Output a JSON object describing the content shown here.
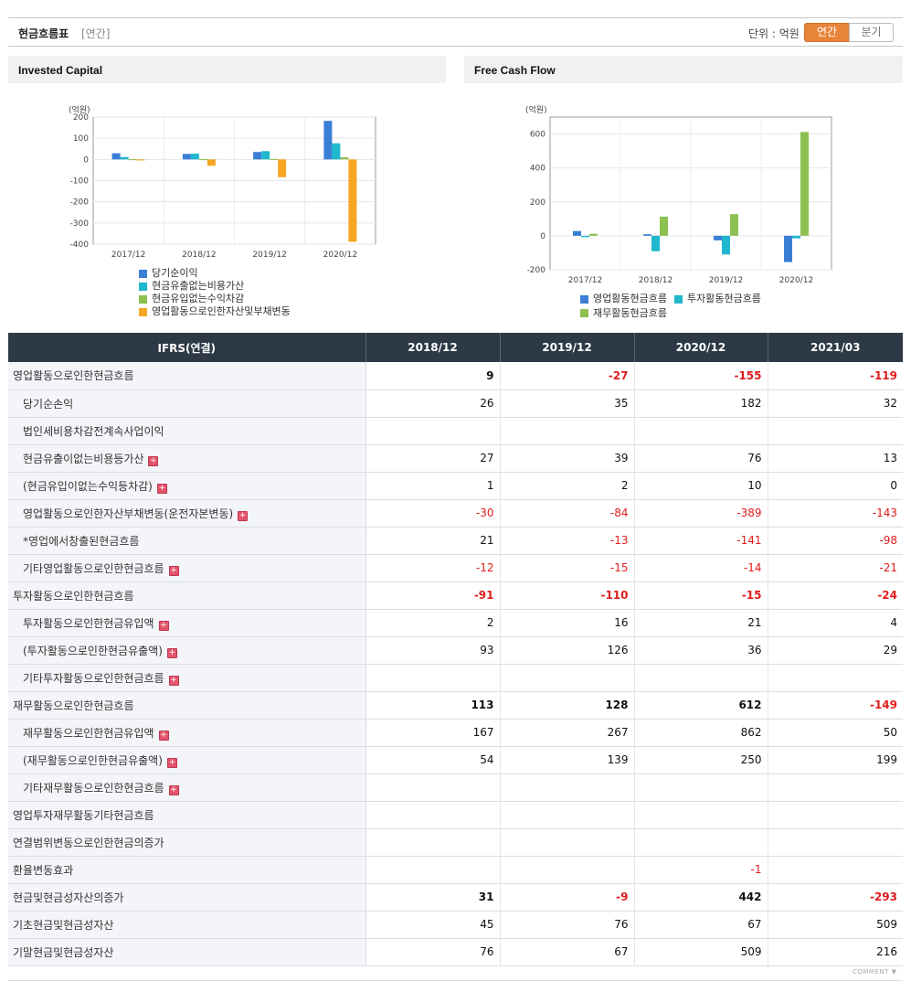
{
  "header": {
    "title": "현금흐름표",
    "period_tag": "[연간]",
    "unit_label": "단위 : 억원",
    "toggle_annual": "연간",
    "toggle_quarter": "분기"
  },
  "charts": [
    {
      "title": "Invested Capital",
      "unit": "(억원)"
    },
    {
      "title": "Free Cash Flow",
      "unit": "(억원)"
    }
  ],
  "chart_data": [
    {
      "type": "bar",
      "title": "Invested Capital",
      "categories": [
        "2017/12",
        "2018/12",
        "2019/12",
        "2020/12"
      ],
      "ylim": [
        -400,
        200
      ],
      "yticks": [
        200,
        100,
        0,
        -100,
        -200,
        -300,
        -400
      ],
      "series": [
        {
          "name": "당기순이익",
          "color": "#3a7fd5",
          "values": [
            29,
            26,
            35,
            182
          ]
        },
        {
          "name": "현금유출없는비용가산",
          "color": "#1fb8cd",
          "values": [
            11,
            27,
            39,
            76
          ]
        },
        {
          "name": "현금유입없는수익차감",
          "color": "#8cc152",
          "values": [
            1,
            1,
            2,
            10
          ]
        },
        {
          "name": "영업활동으로인한자산및부채변동",
          "color": "#f5a623",
          "values": [
            -5,
            -30,
            -84,
            -389
          ]
        }
      ]
    },
    {
      "type": "bar",
      "title": "Free Cash Flow",
      "categories": [
        "2017/12",
        "2018/12",
        "2019/12",
        "2020/12"
      ],
      "ylim": [
        -200,
        700
      ],
      "yticks": [
        600,
        400,
        200,
        0,
        -200
      ],
      "series": [
        {
          "name": "영업활동현금흐름",
          "color": "#3a7fd5",
          "values": [
            28,
            9,
            -27,
            -155
          ]
        },
        {
          "name": "투자활동현금흐름",
          "color": "#1fb8cd",
          "values": [
            -8,
            -91,
            -110,
            -15
          ]
        },
        {
          "name": "재무활동현금흐름",
          "color": "#8cc152",
          "values": [
            12,
            113,
            128,
            612
          ]
        }
      ]
    }
  ],
  "table": {
    "corner": "IFRS(연결)",
    "columns": [
      "2018/12",
      "2019/12",
      "2020/12",
      "2021/03"
    ],
    "rows": [
      {
        "label": "영업활동으로인한현금흐름",
        "indent": false,
        "bold": true,
        "plus": false,
        "values": [
          "9",
          "-27",
          "-155",
          "-119"
        ]
      },
      {
        "label": "당기순손익",
        "indent": true,
        "bold": false,
        "plus": false,
        "values": [
          "26",
          "35",
          "182",
          "32"
        ]
      },
      {
        "label": "법인세비용차감전계속사업이익",
        "indent": true,
        "bold": false,
        "plus": false,
        "values": [
          "",
          "",
          "",
          ""
        ]
      },
      {
        "label": "현금유출이없는비용등가산",
        "indent": true,
        "bold": false,
        "plus": true,
        "values": [
          "27",
          "39",
          "76",
          "13"
        ]
      },
      {
        "label": "(현금유입이없는수익등차감)",
        "indent": true,
        "bold": false,
        "plus": true,
        "values": [
          "1",
          "2",
          "10",
          "0"
        ]
      },
      {
        "label": "영업활동으로인한자산부채변동(운전자본변동)",
        "indent": true,
        "bold": false,
        "plus": true,
        "values": [
          "-30",
          "-84",
          "-389",
          "-143"
        ]
      },
      {
        "label": "*영업에서창출된현금흐름",
        "indent": true,
        "bold": false,
        "plus": false,
        "values": [
          "21",
          "-13",
          "-141",
          "-98"
        ]
      },
      {
        "label": "기타영업활동으로인한현금흐름",
        "indent": true,
        "bold": false,
        "plus": true,
        "values": [
          "-12",
          "-15",
          "-14",
          "-21"
        ]
      },
      {
        "label": "투자활동으로인한현금흐름",
        "indent": false,
        "bold": true,
        "plus": false,
        "values": [
          "-91",
          "-110",
          "-15",
          "-24"
        ]
      },
      {
        "label": "투자활동으로인한현금유입액",
        "indent": true,
        "bold": false,
        "plus": true,
        "values": [
          "2",
          "16",
          "21",
          "4"
        ]
      },
      {
        "label": "(투자활동으로인한현금유출액)",
        "indent": true,
        "bold": false,
        "plus": true,
        "values": [
          "93",
          "126",
          "36",
          "29"
        ]
      },
      {
        "label": "기타투자활동으로인한현금흐름",
        "indent": true,
        "bold": false,
        "plus": true,
        "values": [
          "",
          "",
          "",
          ""
        ]
      },
      {
        "label": "재무활동으로인한현금흐름",
        "indent": false,
        "bold": true,
        "plus": false,
        "values": [
          "113",
          "128",
          "612",
          "-149"
        ]
      },
      {
        "label": "재무활동으로인한현금유입액",
        "indent": true,
        "bold": false,
        "plus": true,
        "values": [
          "167",
          "267",
          "862",
          "50"
        ]
      },
      {
        "label": "(재무활동으로인한현금유출액)",
        "indent": true,
        "bold": false,
        "plus": true,
        "values": [
          "54",
          "139",
          "250",
          "199"
        ]
      },
      {
        "label": "기타재무활동으로인한현금흐름",
        "indent": true,
        "bold": false,
        "plus": true,
        "values": [
          "",
          "",
          "",
          ""
        ]
      },
      {
        "label": "영업투자재무활동기타현금흐름",
        "indent": false,
        "bold": false,
        "plus": false,
        "values": [
          "",
          "",
          "",
          ""
        ]
      },
      {
        "label": "연결범위변동으로인한현금의증가",
        "indent": false,
        "bold": false,
        "plus": false,
        "values": [
          "",
          "",
          "",
          ""
        ]
      },
      {
        "label": "환율변동효과",
        "indent": false,
        "bold": false,
        "plus": false,
        "values": [
          "",
          "",
          "-1",
          ""
        ]
      },
      {
        "label": "현금및현금성자산의증가",
        "indent": false,
        "bold": true,
        "plus": false,
        "values": [
          "31",
          "-9",
          "442",
          "-293"
        ]
      },
      {
        "label": "기초현금및현금성자산",
        "indent": false,
        "bold": false,
        "plus": false,
        "values": [
          "45",
          "76",
          "67",
          "509"
        ]
      },
      {
        "label": "기말현금및현금성자산",
        "indent": false,
        "bold": false,
        "plus": false,
        "values": [
          "76",
          "67",
          "509",
          "216"
        ]
      }
    ]
  },
  "footer": {
    "comment": "COMMENT ▼"
  }
}
